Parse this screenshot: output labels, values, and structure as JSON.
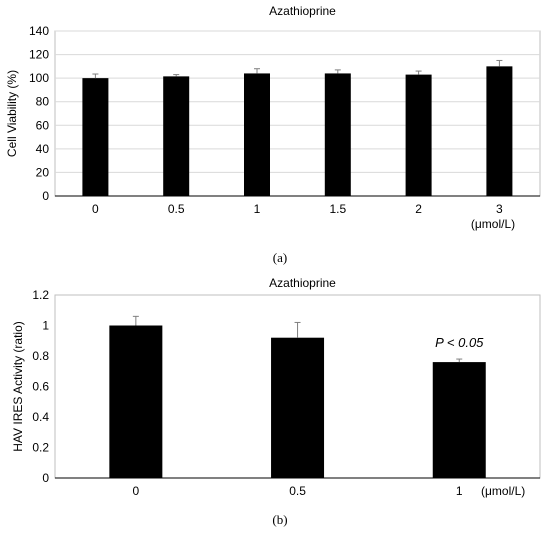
{
  "chart_data": [
    {
      "type": "bar",
      "panel_label": "(a)",
      "title": "Azathioprine",
      "ylabel": "Cell Viability (%)",
      "xlabel": "",
      "unit_label": "(μmol/L)",
      "categories": [
        "0",
        "0.5",
        "1",
        "1.5",
        "2",
        "3"
      ],
      "values": [
        100,
        101.5,
        104,
        104,
        103,
        110
      ],
      "errors": [
        3.5,
        1.5,
        4,
        3,
        3,
        5
      ],
      "ylim": [
        0,
        140
      ],
      "yticks": [
        "0",
        "20",
        "40",
        "60",
        "80",
        "100",
        "120",
        "140"
      ],
      "grid": true,
      "bar_color": "#000000"
    },
    {
      "type": "bar",
      "panel_label": "(b)",
      "title": "Azathioprine",
      "ylabel": "HAV IRES Activity (ratio)",
      "xlabel": "",
      "unit_label": "(μmol/L)",
      "categories": [
        "0",
        "0.5",
        "1"
      ],
      "values": [
        1.0,
        0.92,
        0.76
      ],
      "errors": [
        0.06,
        0.1,
        0.02
      ],
      "ylim": [
        0,
        1.2
      ],
      "yticks": [
        "0",
        "0.2",
        "0.4",
        "0.6",
        "0.8",
        "1",
        "1.2"
      ],
      "grid": false,
      "annotations": [
        "",
        "",
        "P < 0.05"
      ],
      "bar_color": "#000000"
    }
  ]
}
